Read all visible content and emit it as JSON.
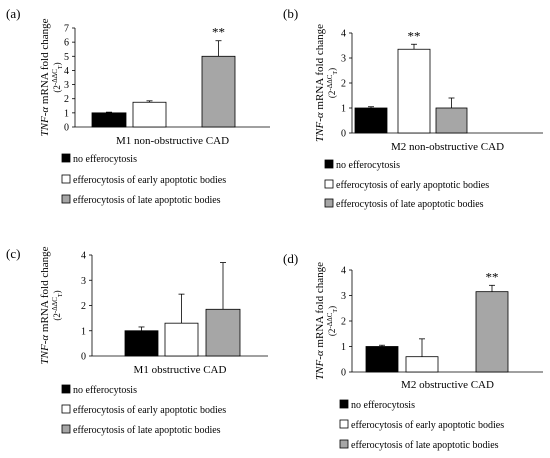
{
  "panel_letters": [
    "(a)",
    "(b)",
    "(c)",
    "(d)"
  ],
  "ylabel": {
    "gene": "TNF-α",
    "text": " mRNA fold change",
    "formula_base": "(2",
    "formula_exp": "-ΔΔC",
    "formula_sub": "T",
    "formula_close": ")"
  },
  "legend": [
    {
      "label": "no efferocytosis",
      "color": "#000000"
    },
    {
      "label": "efferocytosis of early apoptotic bodies",
      "color": "#ffffff"
    },
    {
      "label": "efferocytosis of late apoptotic bodies",
      "color": "#a6a6a6"
    }
  ],
  "chart_data": [
    {
      "type": "bar",
      "panel": "(a)",
      "xlabel": "M1 non-obstructive CAD",
      "ylim": [
        0,
        7
      ],
      "yticks": [
        0,
        1,
        2,
        3,
        4,
        5,
        6,
        7
      ],
      "series": [
        {
          "name": "no efferocytosis",
          "values": [
            1.0
          ],
          "errors": [
            0.05
          ]
        },
        {
          "name": "efferocytosis of early apoptotic bodies",
          "values": [
            1.75
          ],
          "errors": [
            0.1
          ]
        },
        {
          "name": "efferocytosis of late apoptotic bodies",
          "values": [
            5.0
          ],
          "errors": [
            1.1
          ]
        }
      ],
      "annotations": [
        "",
        "",
        "**"
      ]
    },
    {
      "type": "bar",
      "panel": "(b)",
      "xlabel": "M2 non-obstructive CAD",
      "ylim": [
        0,
        4
      ],
      "yticks": [
        0,
        1,
        2,
        3,
        4
      ],
      "series": [
        {
          "name": "no efferocytosis",
          "values": [
            1.0
          ],
          "errors": [
            0.05
          ]
        },
        {
          "name": "efferocytosis of early apoptotic bodies",
          "values": [
            3.35
          ],
          "errors": [
            0.2
          ]
        },
        {
          "name": "efferocytosis of late apoptotic bodies",
          "values": [
            1.0
          ],
          "errors": [
            0.4
          ]
        }
      ],
      "annotations": [
        "",
        "**",
        ""
      ]
    },
    {
      "type": "bar",
      "panel": "(c)",
      "xlabel": "M1 obstructive CAD",
      "ylim": [
        0,
        4
      ],
      "yticks": [
        0,
        1,
        2,
        3,
        4
      ],
      "series": [
        {
          "name": "no efferocytosis",
          "values": [
            1.0
          ],
          "errors": [
            0.15
          ]
        },
        {
          "name": "efferocytosis of early apoptotic bodies",
          "values": [
            1.3
          ],
          "errors": [
            1.15
          ]
        },
        {
          "name": "efferocytosis of late apoptotic bodies",
          "values": [
            1.85
          ],
          "errors": [
            1.85
          ]
        }
      ],
      "annotations": [
        "",
        "",
        ""
      ]
    },
    {
      "type": "bar",
      "panel": "(d)",
      "xlabel": "M2 obstructive CAD",
      "ylim": [
        0,
        4
      ],
      "yticks": [
        0,
        1,
        2,
        3,
        4
      ],
      "series": [
        {
          "name": "no efferocytosis",
          "values": [
            1.0
          ],
          "errors": [
            0.05
          ]
        },
        {
          "name": "efferocytosis of early apoptotic bodies",
          "values": [
            0.6
          ],
          "errors": [
            0.7
          ]
        },
        {
          "name": "efferocytosis of late apoptotic bodies",
          "values": [
            3.15
          ],
          "errors": [
            0.25
          ]
        }
      ],
      "annotations": [
        "",
        "",
        "**"
      ]
    }
  ]
}
